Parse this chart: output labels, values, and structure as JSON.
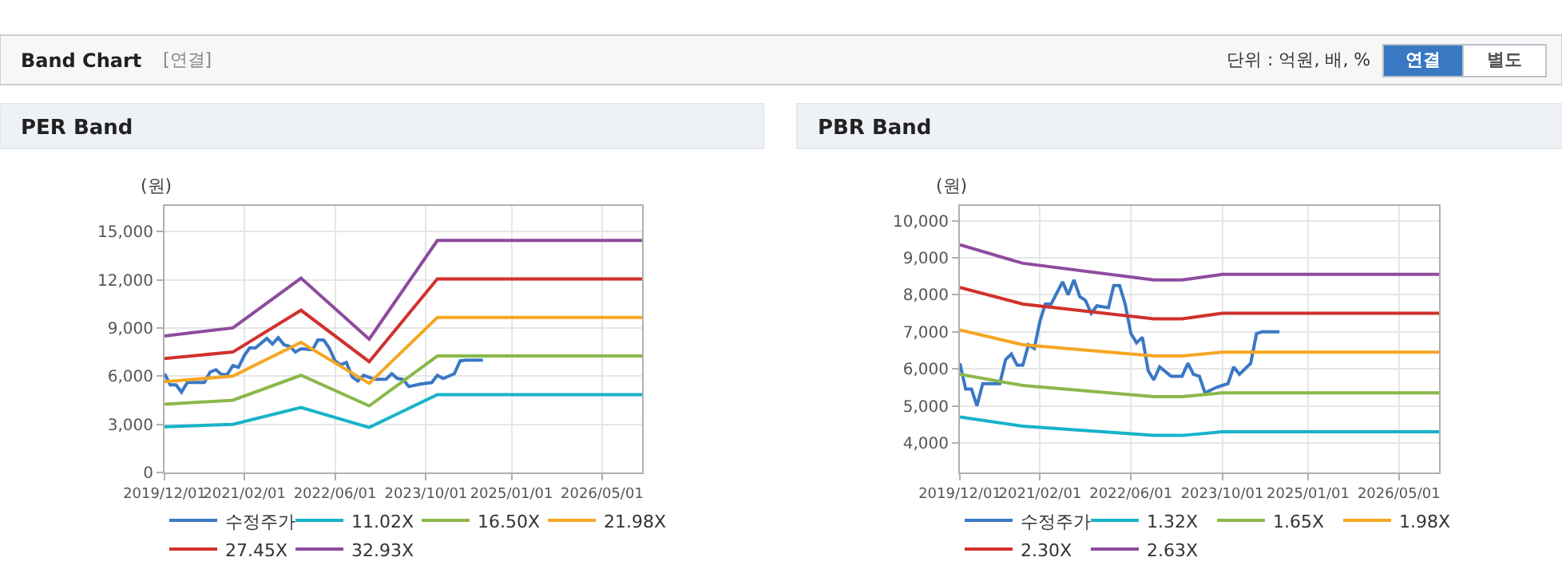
{
  "chart_data": [
    {
      "type": "line",
      "title": "PER Band",
      "ylabel": "(원)",
      "annotations": [
        "Band Chart",
        "[연결]",
        "단위 : 억원, 배, %",
        "연결",
        "별도"
      ],
      "xlim": [
        "2019-12-01",
        "2026-12-01"
      ],
      "xticks": [
        {
          "value": "2019-12-01",
          "label": "2019/12/01"
        },
        {
          "value": "2021-02-01",
          "label": "2021/02/01"
        },
        {
          "value": "2022-06-01",
          "label": "2022/06/01"
        },
        {
          "value": "2023-10-01",
          "label": "2023/10/01"
        },
        {
          "value": "2025-01-01",
          "label": "2025/01/01"
        },
        {
          "value": "2026-05-01",
          "label": "2026/05/01"
        }
      ],
      "ylim": [
        0,
        16600
      ],
      "yticks": [
        0,
        {
          "value": 3000,
          "label": "3,000"
        },
        {
          "value": 6000,
          "label": "6,000"
        },
        {
          "value": 9000,
          "label": "9,000"
        },
        {
          "value": 12000,
          "label": "12,000"
        },
        {
          "value": 15000,
          "label": "15,000"
        }
      ],
      "grid": true,
      "legend": "bottom",
      "marker": "none",
      "line_style": "solid",
      "series": [
        {
          "name": "수정주가",
          "color": "#3a78c4",
          "x": [
            "2019-12",
            "2020-01",
            "2020-02",
            "2020-03",
            "2020-04",
            "2020-07",
            "2020-08",
            "2020-09",
            "2020-10",
            "2020-11",
            "2020-12",
            "2021-01",
            "2021-02",
            "2021-03",
            "2021-04",
            "2021-06",
            "2021-07",
            "2021-08",
            "2021-09",
            "2021-10",
            "2021-11",
            "2021-12",
            "2022-02",
            "2022-03",
            "2022-04",
            "2022-05",
            "2022-06",
            "2022-07",
            "2022-08",
            "2022-09",
            "2022-10",
            "2022-11",
            "2023-01",
            "2023-03",
            "2023-04",
            "2023-05",
            "2023-06",
            "2023-07",
            "2023-09",
            "2023-11",
            "2023-12",
            "2024-01",
            "2024-03",
            "2024-04",
            "2024-05",
            "2024-08"
          ],
          "values": [
            6150,
            5450,
            5450,
            5000,
            5600,
            5600,
            6250,
            6400,
            6100,
            6100,
            6650,
            6550,
            7300,
            7750,
            7750,
            8350,
            8000,
            8400,
            7950,
            7850,
            7500,
            7700,
            7650,
            8250,
            8250,
            7750,
            6950,
            6700,
            6850,
            5950,
            5700,
            6050,
            5800,
            5800,
            6150,
            5850,
            5800,
            5350,
            5500,
            5600,
            6050,
            5850,
            6150,
            6950,
            7000,
            7000
          ]
        },
        {
          "name": "11.02X",
          "color": "#17b3c9",
          "x": [
            "2019-12",
            "2020-12",
            "2021-12",
            "2022-12",
            "2023-12",
            "2026-12"
          ],
          "values": [
            2850,
            3000,
            4050,
            2800,
            4850,
            4850
          ]
        },
        {
          "name": "16.50X",
          "color": "#8cb84a",
          "x": [
            "2019-12",
            "2020-12",
            "2021-12",
            "2022-12",
            "2023-12",
            "2026-12"
          ],
          "values": [
            4250,
            4500,
            6050,
            4150,
            7250,
            7250
          ]
        },
        {
          "name": "21.98X",
          "color": "#f5a623",
          "x": [
            "2019-12",
            "2020-12",
            "2021-12",
            "2022-12",
            "2023-12",
            "2026-12"
          ],
          "values": [
            5650,
            6000,
            8100,
            5550,
            9650,
            9650
          ]
        },
        {
          "name": "27.45X",
          "color": "#d0312d",
          "x": [
            "2019-12",
            "2020-12",
            "2021-12",
            "2022-12",
            "2023-12",
            "2026-12"
          ],
          "values": [
            7100,
            7500,
            10100,
            6900,
            12050,
            12050
          ]
        },
        {
          "name": "32.93X",
          "color": "#8e4b9e",
          "x": [
            "2019-12",
            "2020-12",
            "2021-12",
            "2022-12",
            "2023-12",
            "2026-12"
          ],
          "values": [
            8500,
            9000,
            12100,
            8300,
            14450,
            14450
          ]
        }
      ]
    },
    {
      "type": "line",
      "title": "PBR Band",
      "ylabel": "(원)",
      "xlim": [
        "2019-12-01",
        "2026-12-01"
      ],
      "xticks": [
        {
          "value": "2019-12-01",
          "label": "2019/12/01"
        },
        {
          "value": "2021-02-01",
          "label": "2021/02/01"
        },
        {
          "value": "2022-06-01",
          "label": "2022/06/01"
        },
        {
          "value": "2023-10-01",
          "label": "2023/10/01"
        },
        {
          "value": "2025-01-01",
          "label": "2025/01/01"
        },
        {
          "value": "2026-05-01",
          "label": "2026/05/01"
        }
      ],
      "ylim": [
        3200,
        10400
      ],
      "yticks": [
        {
          "value": 4000,
          "label": "4,000"
        },
        {
          "value": 5000,
          "label": "5,000"
        },
        {
          "value": 6000,
          "label": "6,000"
        },
        {
          "value": 7000,
          "label": "7,000"
        },
        {
          "value": 8000,
          "label": "8,000"
        },
        {
          "value": 9000,
          "label": "9,000"
        },
        {
          "value": 10000,
          "label": "10,000"
        }
      ],
      "grid": true,
      "legend": "bottom",
      "marker": "none",
      "line_style": "solid",
      "series": [
        {
          "name": "수정주가",
          "color": "#3a78c4",
          "x": [
            "2019-12",
            "2020-01",
            "2020-02",
            "2020-03",
            "2020-04",
            "2020-07",
            "2020-08",
            "2020-09",
            "2020-10",
            "2020-11",
            "2020-12",
            "2021-01",
            "2021-02",
            "2021-03",
            "2021-04",
            "2021-06",
            "2021-07",
            "2021-08",
            "2021-09",
            "2021-10",
            "2021-11",
            "2021-12",
            "2022-02",
            "2022-03",
            "2022-04",
            "2022-05",
            "2022-06",
            "2022-07",
            "2022-08",
            "2022-09",
            "2022-10",
            "2022-11",
            "2023-01",
            "2023-03",
            "2023-04",
            "2023-05",
            "2023-06",
            "2023-07",
            "2023-09",
            "2023-11",
            "2023-12",
            "2024-01",
            "2024-03",
            "2024-04",
            "2024-05",
            "2024-08"
          ],
          "values": [
            6150,
            5450,
            5450,
            5000,
            5600,
            5600,
            6250,
            6400,
            6100,
            6100,
            6650,
            6550,
            7300,
            7750,
            7750,
            8350,
            8000,
            8400,
            7950,
            7850,
            7500,
            7700,
            7650,
            8250,
            8250,
            7750,
            6950,
            6700,
            6850,
            5950,
            5700,
            6050,
            5800,
            5800,
            6150,
            5850,
            5800,
            5350,
            5500,
            5600,
            6050,
            5850,
            6150,
            6950,
            7000,
            7000
          ]
        },
        {
          "name": "1.32X",
          "color": "#17b3c9",
          "x": [
            "2019-12",
            "2020-11",
            "2022-10",
            "2023-03",
            "2023-10",
            "2026-12"
          ],
          "values": [
            4700,
            4450,
            4200,
            4200,
            4300,
            4300
          ]
        },
        {
          "name": "1.65X",
          "color": "#8cb84a",
          "x": [
            "2019-12",
            "2020-11",
            "2022-10",
            "2023-03",
            "2023-10",
            "2026-12"
          ],
          "values": [
            5850,
            5550,
            5250,
            5250,
            5350,
            5350
          ]
        },
        {
          "name": "1.98X",
          "color": "#f5a623",
          "x": [
            "2019-12",
            "2020-11",
            "2022-10",
            "2023-03",
            "2023-10",
            "2026-12"
          ],
          "values": [
            7050,
            6650,
            6350,
            6350,
            6450,
            6450
          ]
        },
        {
          "name": "2.30X",
          "color": "#d0312d",
          "x": [
            "2019-12",
            "2020-11",
            "2022-10",
            "2023-03",
            "2023-10",
            "2026-12"
          ],
          "values": [
            8200,
            7750,
            7350,
            7350,
            7500,
            7500
          ]
        },
        {
          "name": "2.63X",
          "color": "#8e4b9e",
          "x": [
            "2019-12",
            "2020-11",
            "2022-10",
            "2023-03",
            "2023-10",
            "2026-12"
          ],
          "values": [
            9350,
            8850,
            8400,
            8400,
            8550,
            8550
          ]
        }
      ]
    }
  ]
}
